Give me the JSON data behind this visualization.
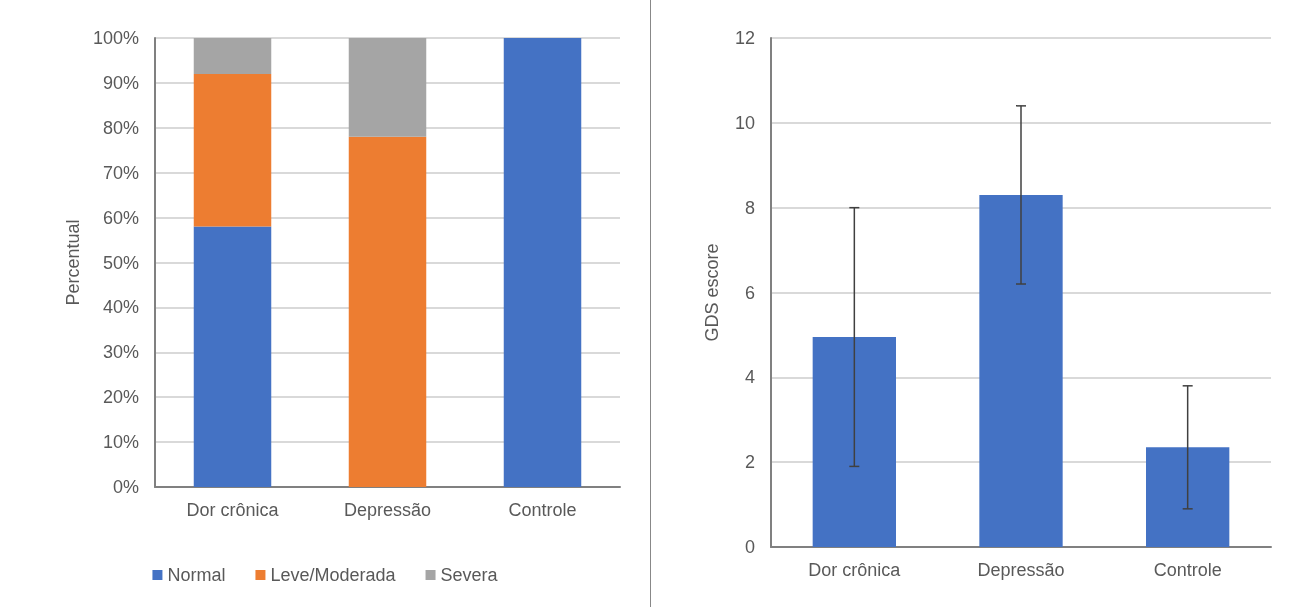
{
  "chart_data": [
    {
      "type": "bar",
      "stacked": true,
      "categories": [
        "Dor crônica",
        "Depressão",
        "Controle"
      ],
      "ylabel": "Percentual",
      "ylim": [
        0,
        100
      ],
      "yticks": [
        {
          "value": 0,
          "label": "0%"
        },
        {
          "value": 10,
          "label": "10%"
        },
        {
          "value": 20,
          "label": "20%"
        },
        {
          "value": 30,
          "label": "30%"
        },
        {
          "value": 40,
          "label": "40%"
        },
        {
          "value": 50,
          "label": "50%"
        },
        {
          "value": 60,
          "label": "60%"
        },
        {
          "value": 70,
          "label": "70%"
        },
        {
          "value": 80,
          "label": "80%"
        },
        {
          "value": 90,
          "label": "90%"
        },
        {
          "value": 100,
          "label": "100%"
        }
      ],
      "grid": "y",
      "legend": "bottom",
      "series": [
        {
          "name": "Normal",
          "color": "#4472c4",
          "values": [
            58,
            0,
            100
          ]
        },
        {
          "name": "Leve/Moderada",
          "color": "#ed7d31",
          "values": [
            34,
            78,
            0
          ]
        },
        {
          "name": "Severa",
          "color": "#a5a5a5",
          "values": [
            8,
            22,
            0
          ]
        }
      ]
    },
    {
      "type": "bar",
      "categories": [
        "Dor crônica",
        "Depressão",
        "Controle"
      ],
      "ylabel": "GDS escore",
      "ylim": [
        0,
        12
      ],
      "yticks": [
        0,
        2,
        4,
        6,
        8,
        10,
        12
      ],
      "grid": "y",
      "color": "#4472c4",
      "values": [
        4.95,
        8.3,
        2.35
      ],
      "errors": [
        [
          1.9,
          8.0
        ],
        [
          6.2,
          10.4
        ],
        [
          0.9,
          3.8
        ]
      ]
    }
  ]
}
